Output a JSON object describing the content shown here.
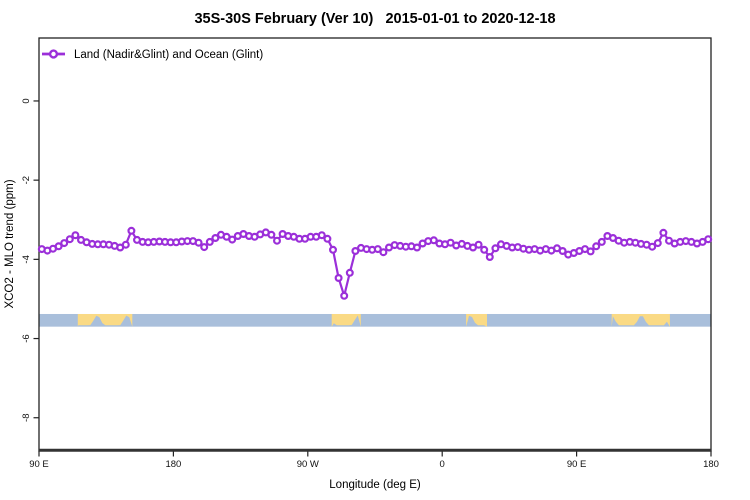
{
  "title": "35S-30S February (Ver 10)   2015-01-01 to 2020-12-18",
  "legend": {
    "label": "Land (Nadir&Glint) and Ocean (Glint)"
  },
  "axes": {
    "x": {
      "title": "Longitude (deg E)",
      "range": [
        90,
        540
      ],
      "ticks": [
        {
          "value": 90,
          "label": "90 E"
        },
        {
          "value": 180,
          "label": "180"
        },
        {
          "value": 270,
          "label": "90 W"
        },
        {
          "value": 360,
          "label": "0"
        },
        {
          "value": 450,
          "label": "90 E"
        },
        {
          "value": 540,
          "label": "180"
        }
      ]
    },
    "y": {
      "title": "XCO2 - MLO trend (ppm)",
      "range": [
        -8.84,
        1.59
      ],
      "ticks": [
        {
          "value": 0,
          "label": "0"
        },
        {
          "value": -2,
          "label": "-2"
        },
        {
          "value": -4,
          "label": "-4"
        },
        {
          "value": -6,
          "label": "-6"
        },
        {
          "value": -8,
          "label": "-8"
        }
      ]
    }
  },
  "colors": {
    "series": "#9B2FD9",
    "marker_fill": "#FFFFFF",
    "ocean_band": "#A9BFDB",
    "land_band": "#FADA85",
    "axis": "#333333",
    "box": "#222222"
  },
  "chart_data": {
    "type": "line",
    "title": "35S-30S February (Ver 10)   2015-01-01 to 2020-12-18",
    "xlabel": "Longitude (deg E)",
    "ylabel": "XCO2 - MLO trend (ppm)",
    "xlim": [
      90,
      540
    ],
    "ylim": [
      -8.84,
      1.59
    ],
    "grid": false,
    "legend_position": "top-left-inside",
    "series": [
      {
        "name": "Land (Nadir&Glint) and Ocean (Glint)",
        "color": "#9B2FD9",
        "marker": "open-circle",
        "x": [
          91.875,
          95.625,
          99.375,
          103.125,
          106.875,
          110.625,
          114.375,
          118.125,
          121.875,
          125.625,
          129.375,
          133.125,
          136.875,
          140.625,
          144.375,
          148.125,
          151.875,
          155.625,
          159.375,
          163.125,
          166.875,
          170.625,
          174.375,
          178.125,
          181.875,
          185.625,
          189.375,
          193.125,
          196.875,
          200.625,
          204.375,
          208.125,
          211.875,
          215.625,
          219.375,
          223.125,
          226.875,
          230.625,
          234.375,
          238.125,
          241.875,
          245.625,
          249.375,
          253.125,
          256.875,
          260.625,
          264.375,
          268.125,
          271.875,
          275.625,
          279.375,
          283.125,
          286.875,
          290.625,
          294.375,
          298.125,
          301.875,
          305.625,
          309.375,
          313.125,
          316.875,
          320.625,
          324.375,
          328.125,
          331.875,
          335.625,
          339.375,
          343.125,
          346.875,
          350.625,
          354.375,
          358.125,
          361.875,
          365.625,
          369.375,
          373.125,
          376.875,
          380.625,
          384.375,
          388.125,
          391.875,
          395.625,
          399.375,
          403.125,
          406.875,
          410.625,
          414.375,
          418.125,
          421.875,
          425.625,
          429.375,
          433.125,
          436.875,
          440.625,
          444.375,
          448.125,
          451.875,
          455.625,
          459.375,
          463.125,
          466.875,
          470.625,
          474.375,
          478.125,
          481.875,
          485.625,
          489.375,
          493.125,
          496.875,
          500.625,
          504.375,
          508.125,
          511.875,
          515.625,
          519.375,
          523.125,
          526.875,
          530.625,
          534.375,
          538.125
        ],
        "y": [
          -3.74,
          -3.78,
          -3.73,
          -3.67,
          -3.59,
          -3.49,
          -3.39,
          -3.51,
          -3.57,
          -3.61,
          -3.62,
          -3.62,
          -3.63,
          -3.66,
          -3.7,
          -3.63,
          -3.28,
          -3.51,
          -3.56,
          -3.57,
          -3.56,
          -3.55,
          -3.56,
          -3.57,
          -3.57,
          -3.55,
          -3.54,
          -3.54,
          -3.58,
          -3.69,
          -3.56,
          -3.46,
          -3.38,
          -3.43,
          -3.5,
          -3.41,
          -3.36,
          -3.41,
          -3.43,
          -3.37,
          -3.32,
          -3.38,
          -3.53,
          -3.36,
          -3.41,
          -3.43,
          -3.48,
          -3.48,
          -3.43,
          -3.43,
          -3.39,
          -3.48,
          -3.76,
          -4.47,
          -4.92,
          -4.34,
          -3.79,
          -3.71,
          -3.74,
          -3.76,
          -3.74,
          -3.82,
          -3.7,
          -3.64,
          -3.66,
          -3.68,
          -3.67,
          -3.7,
          -3.6,
          -3.54,
          -3.52,
          -3.6,
          -3.62,
          -3.58,
          -3.65,
          -3.61,
          -3.66,
          -3.7,
          -3.63,
          -3.76,
          -3.94,
          -3.72,
          -3.62,
          -3.66,
          -3.7,
          -3.69,
          -3.73,
          -3.76,
          -3.74,
          -3.78,
          -3.74,
          -3.78,
          -3.72,
          -3.79,
          -3.88,
          -3.84,
          -3.79,
          -3.74,
          -3.8,
          -3.67,
          -3.56,
          -3.41,
          -3.46,
          -3.53,
          -3.58,
          -3.56,
          -3.58,
          -3.61,
          -3.63,
          -3.68,
          -3.59,
          -3.33,
          -3.53,
          -3.6,
          -3.56,
          -3.54,
          -3.56,
          -3.6,
          -3.56,
          -3.49
        ]
      }
    ],
    "surface_band": {
      "description": "land-ocean strip",
      "top_ppm": -5.38,
      "bottom_ppm": -5.7,
      "ocean_color": "#A9BFDB",
      "land_color": "#FADA85",
      "land_segments_deg_e": [
        [
          116,
          152.5
        ],
        [
          286,
          305.5
        ],
        [
          376,
          390
        ],
        [
          473.5,
          512.5
        ]
      ]
    }
  }
}
